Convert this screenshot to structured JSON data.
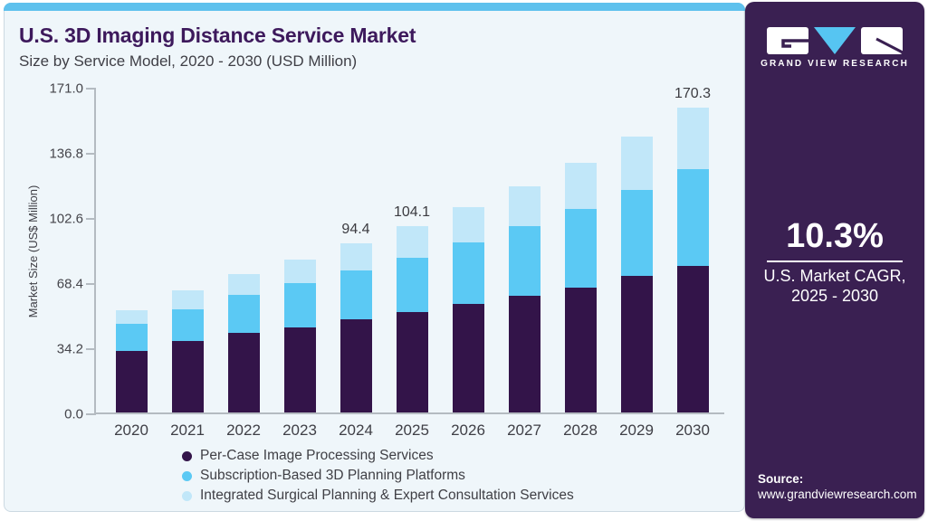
{
  "header": {
    "title": "U.S. 3D Imaging Distance Service Market",
    "subtitle": "Size by Service Model, 2020 - 2030 (USD Million)"
  },
  "sidebar": {
    "brand": "GRAND VIEW RESEARCH",
    "cagr_value": "10.3%",
    "cagr_caption_line1": "U.S. Market CAGR,",
    "cagr_caption_line2": "2025 - 2030",
    "source_label": "Source:",
    "source_url": "www.grandviewresearch.com",
    "bg_color": "#3a2052",
    "accent_color": "#56c5f2"
  },
  "chart_data": {
    "type": "bar",
    "stacked": true,
    "title": "U.S. 3D Imaging Distance Service Market",
    "subtitle": "Size by Service Model, 2020 - 2030 (USD Million)",
    "xlabel": "",
    "ylabel": "Market Size (US$ Million)",
    "ylim": [
      0,
      171.0
    ],
    "ytick_labels": [
      "0.0",
      "34.2",
      "68.4",
      "102.6",
      "136.8",
      "171.0"
    ],
    "grid": false,
    "legend_position": "bottom",
    "categories": [
      "2020",
      "2021",
      "2022",
      "2023",
      "2024",
      "2025",
      "2026",
      "2027",
      "2028",
      "2029",
      "2030"
    ],
    "series": [
      {
        "name": "Per-Case Image Processing Services",
        "color": "#331449",
        "values": [
          34.3,
          39.7,
          44.2,
          47.7,
          51.8,
          56.1,
          60.6,
          65.2,
          69.9,
          76.1,
          82.0
        ]
      },
      {
        "name": "Subscription-Based 3D Planning Platforms",
        "color": "#5bc9f4",
        "values": [
          15.4,
          18.1,
          21.5,
          24.5,
          27.3,
          30.3,
          34.3,
          38.6,
          44.0,
          48.4,
          53.9
        ]
      },
      {
        "name": "Integrated Surgical Planning & Expert Consultation Services",
        "color": "#c1e7f9",
        "values": [
          7.6,
          10.4,
          11.4,
          13.1,
          15.3,
          17.7,
          19.9,
          22.7,
          25.7,
          29.6,
          34.4
        ]
      }
    ],
    "totals_labeled": {
      "2024": "94.4",
      "2025": "104.1",
      "2030": "170.3"
    },
    "annotations": [
      "94.4",
      "104.1",
      "170.3"
    ]
  }
}
